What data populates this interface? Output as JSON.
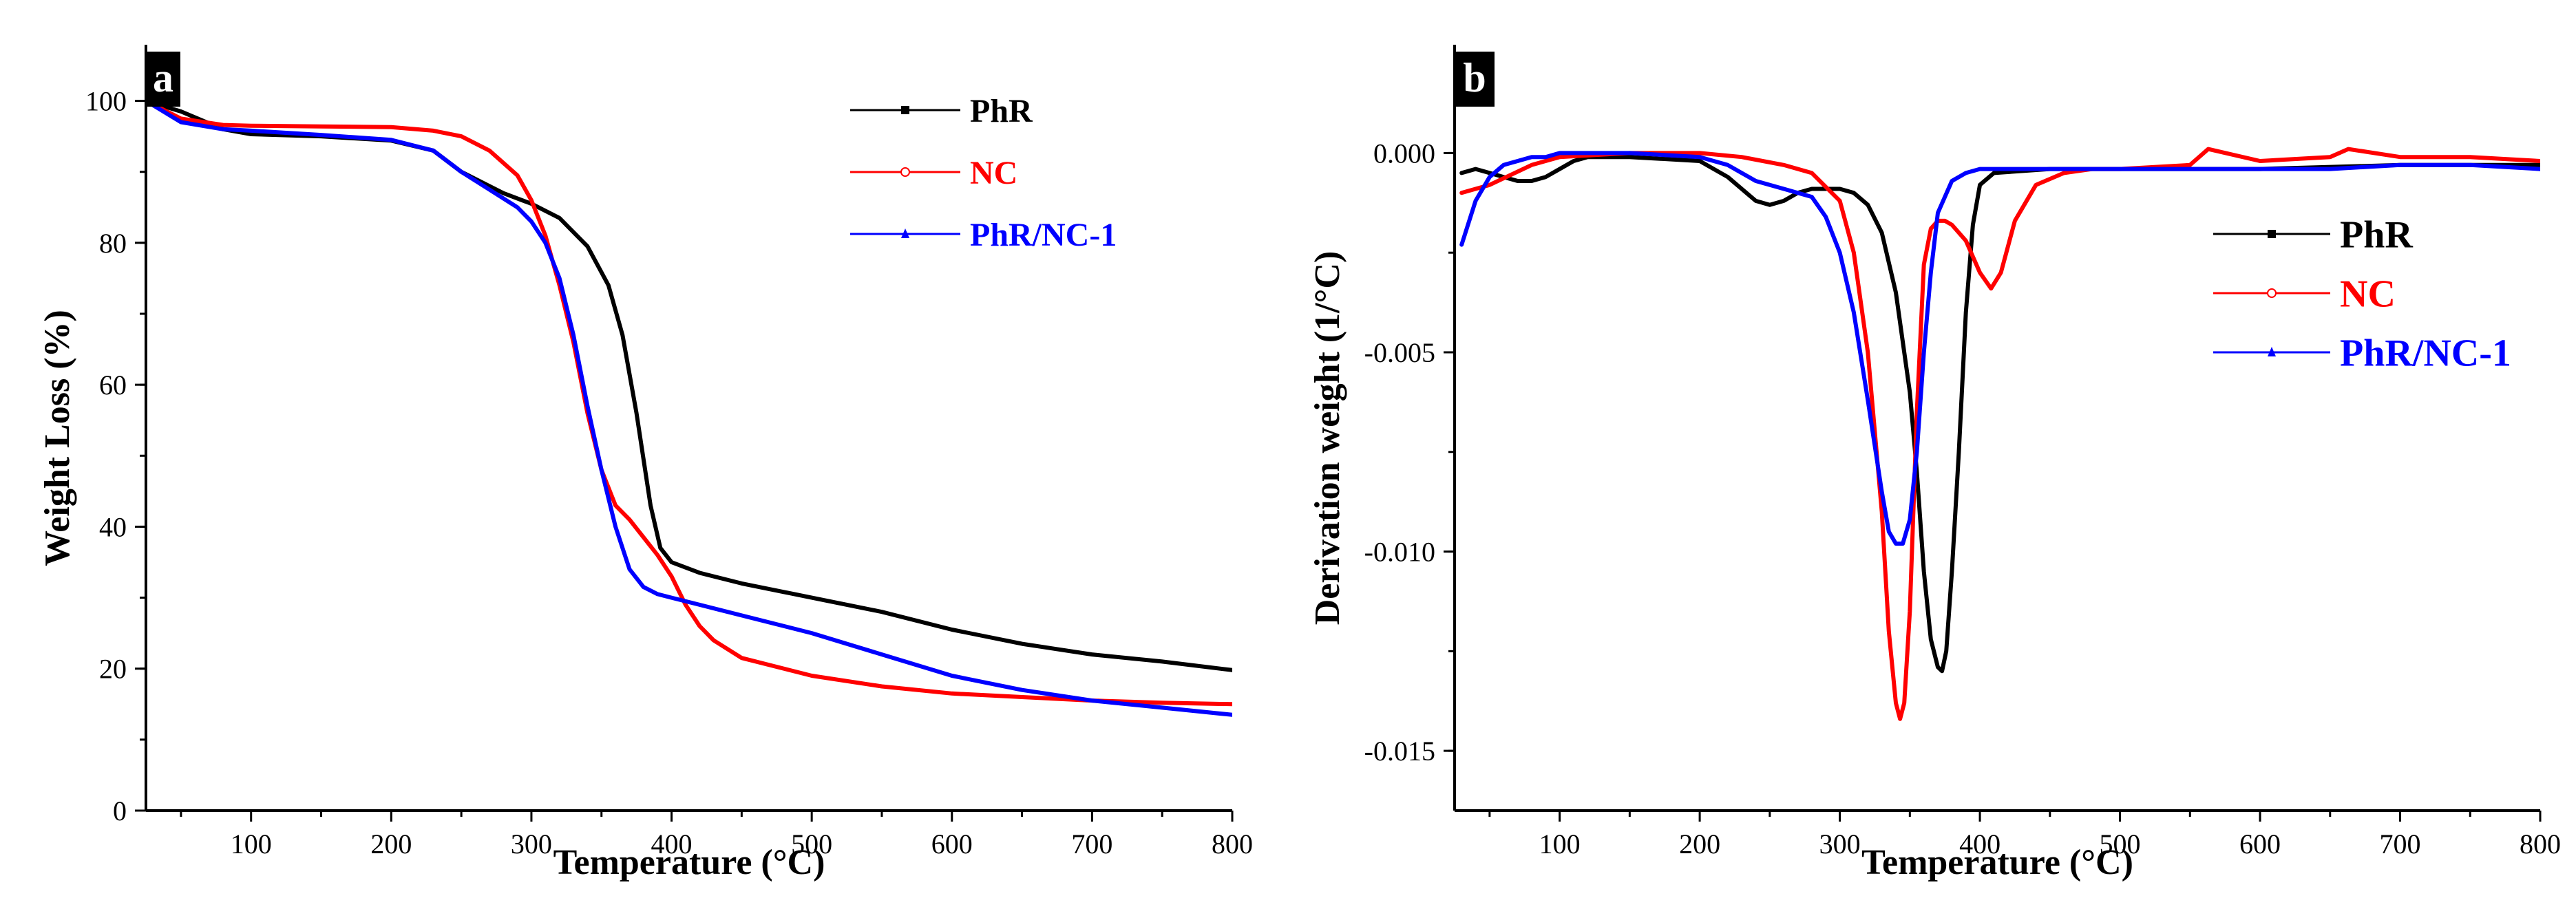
{
  "chart_data": [
    {
      "type": "line",
      "panel_label": "a",
      "xlabel": "Temperature (°C)",
      "ylabel": "Weight Loss (%)",
      "xlim": [
        25,
        800
      ],
      "ylim": [
        0,
        105
      ],
      "xticks": [
        100,
        200,
        300,
        400,
        500,
        600,
        700,
        800
      ],
      "xtick_labels": [
        "100",
        "200",
        "300",
        "400",
        "500",
        "600",
        "700",
        "800"
      ],
      "yticks": [
        0,
        20,
        40,
        60,
        80,
        100
      ],
      "ytick_labels": [
        "0",
        "20",
        "40",
        "60",
        "80",
        "100"
      ],
      "grid": false,
      "legend_position": "top-right",
      "series": [
        {
          "name": "PhR",
          "color": "#000000",
          "marker": "square",
          "x": [
            25,
            50,
            80,
            100,
            150,
            200,
            230,
            250,
            280,
            300,
            320,
            340,
            355,
            365,
            375,
            385,
            392,
            400,
            420,
            450,
            500,
            550,
            600,
            650,
            700,
            750,
            800
          ],
          "y": [
            100,
            98.5,
            96,
            95.3,
            95,
            94.4,
            93,
            90,
            87,
            85.5,
            83.5,
            79.5,
            74,
            67,
            56,
            43,
            37,
            35,
            33.5,
            32,
            30,
            28,
            25.5,
            23.5,
            22,
            21,
            19.8
          ]
        },
        {
          "name": "NC",
          "color": "#ff0000",
          "marker": "circle",
          "x": [
            25,
            50,
            80,
            100,
            150,
            200,
            230,
            250,
            270,
            290,
            300,
            310,
            320,
            330,
            340,
            350,
            360,
            370,
            380,
            390,
            400,
            410,
            420,
            430,
            450,
            500,
            550,
            600,
            650,
            700,
            750,
            800
          ],
          "y": [
            100,
            97.5,
            96.6,
            96.5,
            96.4,
            96.3,
            95.8,
            95,
            93,
            89.5,
            86,
            81,
            74,
            66,
            56,
            48,
            43,
            41,
            38.5,
            36,
            33,
            29,
            26,
            24,
            21.5,
            19,
            17.5,
            16.5,
            16,
            15.5,
            15.2,
            15
          ]
        },
        {
          "name": "PhR/NC-1",
          "color": "#0000ff",
          "marker": "triangle",
          "x": [
            25,
            50,
            80,
            100,
            150,
            200,
            230,
            250,
            270,
            290,
            300,
            310,
            320,
            330,
            340,
            350,
            360,
            370,
            380,
            390,
            400,
            420,
            450,
            500,
            550,
            600,
            650,
            700,
            750,
            800
          ],
          "y": [
            100,
            97,
            96,
            95.8,
            95.2,
            94.5,
            93,
            90,
            87.5,
            85,
            83,
            80,
            75,
            67,
            57,
            48,
            40,
            34,
            31.5,
            30.5,
            30,
            29,
            27.5,
            25,
            22,
            19,
            17,
            15.5,
            14.5,
            13.5
          ]
        }
      ]
    },
    {
      "type": "line",
      "panel_label": "b",
      "xlabel": "Temperature (°C)",
      "ylabel": "Derivation weight (1/°C)",
      "xlim": [
        25,
        800
      ],
      "ylim": [
        -0.0165,
        0.0022
      ],
      "xticks": [
        100,
        200,
        300,
        400,
        500,
        600,
        700,
        800
      ],
      "xtick_labels": [
        "100",
        "200",
        "300",
        "400",
        "500",
        "600",
        "700",
        "800"
      ],
      "yticks": [
        0.0,
        -0.005,
        -0.01,
        -0.015
      ],
      "ytick_labels": [
        "0.000",
        "-0.005",
        "-0.010",
        "-0.015"
      ],
      "grid": false,
      "legend_position": "right",
      "series": [
        {
          "name": "PhR",
          "color": "#000000",
          "marker": "square",
          "x": [
            30,
            40,
            50,
            60,
            70,
            80,
            90,
            100,
            110,
            120,
            150,
            200,
            220,
            240,
            250,
            260,
            270,
            280,
            290,
            300,
            310,
            320,
            330,
            340,
            350,
            355,
            360,
            365,
            370,
            373,
            376,
            380,
            385,
            390,
            395,
            400,
            410,
            450,
            500,
            600,
            700,
            800
          ],
          "y": [
            -0.0005,
            -0.0004,
            -0.0005,
            -0.0006,
            -0.0007,
            -0.0007,
            -0.0006,
            -0.0004,
            -0.0002,
            -0.0001,
            -0.0001,
            -0.0002,
            -0.0006,
            -0.0012,
            -0.0013,
            -0.0012,
            -0.001,
            -0.0009,
            -0.0009,
            -0.0009,
            -0.001,
            -0.0013,
            -0.002,
            -0.0035,
            -0.006,
            -0.008,
            -0.0105,
            -0.0122,
            -0.0129,
            -0.013,
            -0.0125,
            -0.0105,
            -0.0075,
            -0.004,
            -0.0018,
            -0.0008,
            -0.0005,
            -0.0004,
            -0.0004,
            -0.0004,
            -0.0003,
            -0.0003
          ]
        },
        {
          "name": "NC",
          "color": "#ff0000",
          "marker": "circle",
          "x": [
            30,
            50,
            80,
            100,
            150,
            175,
            200,
            230,
            260,
            280,
            300,
            310,
            320,
            330,
            335,
            340,
            343,
            346,
            350,
            355,
            360,
            365,
            370,
            375,
            380,
            390,
            400,
            408,
            415,
            425,
            440,
            460,
            480,
            500,
            550,
            563,
            600,
            650,
            663,
            700,
            750,
            800
          ],
          "y": [
            -0.001,
            -0.0008,
            -0.0003,
            -0.0001,
            0.0,
            0.0,
            0.0,
            -0.0001,
            -0.0003,
            -0.0005,
            -0.0012,
            -0.0025,
            -0.005,
            -0.009,
            -0.012,
            -0.0138,
            -0.0142,
            -0.0138,
            -0.0115,
            -0.0065,
            -0.0028,
            -0.0019,
            -0.0017,
            -0.0017,
            -0.0018,
            -0.0022,
            -0.003,
            -0.0034,
            -0.003,
            -0.0017,
            -0.0008,
            -0.0005,
            -0.0004,
            -0.0004,
            -0.0003,
            0.0001,
            -0.0002,
            -0.0001,
            0.0001,
            -0.0001,
            -0.0001,
            -0.0002
          ]
        },
        {
          "name": "PhR/NC-1",
          "color": "#0000ff",
          "marker": "triangle",
          "x": [
            30,
            40,
            50,
            60,
            70,
            80,
            90,
            100,
            120,
            150,
            200,
            220,
            240,
            260,
            280,
            290,
            300,
            310,
            320,
            330,
            335,
            340,
            345,
            350,
            355,
            360,
            365,
            370,
            380,
            390,
            400,
            420,
            450,
            500,
            550,
            600,
            650,
            700,
            750,
            800
          ],
          "y": [
            -0.0023,
            -0.0012,
            -0.0006,
            -0.0003,
            -0.0002,
            -0.0001,
            -0.0001,
            0.0,
            0.0,
            0.0,
            -0.0001,
            -0.0003,
            -0.0007,
            -0.0009,
            -0.0011,
            -0.0016,
            -0.0025,
            -0.004,
            -0.0062,
            -0.0085,
            -0.0095,
            -0.0098,
            -0.0098,
            -0.0092,
            -0.0075,
            -0.005,
            -0.003,
            -0.0015,
            -0.0007,
            -0.0005,
            -0.0004,
            -0.0004,
            -0.0004,
            -0.0004,
            -0.0004,
            -0.0004,
            -0.0004,
            -0.0003,
            -0.0003,
            -0.0004
          ]
        }
      ]
    }
  ]
}
